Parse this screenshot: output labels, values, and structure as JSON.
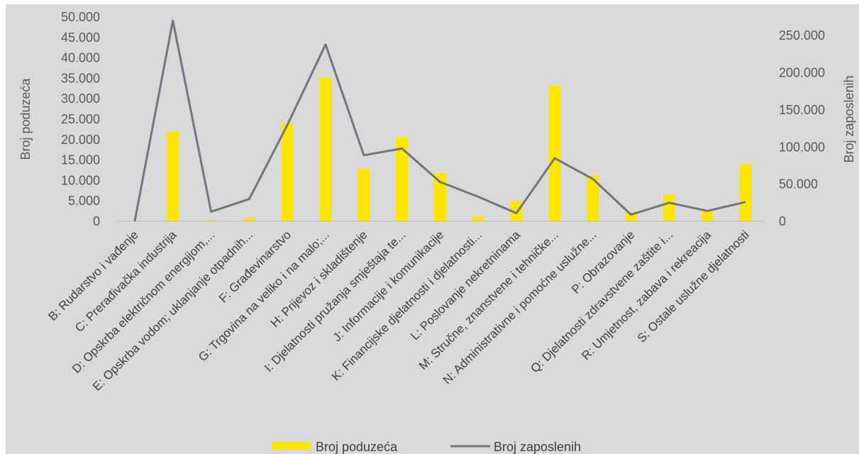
{
  "chart_data": {
    "type": "bar",
    "categories": [
      "B: Rudarstvo i vađenje",
      "C: Prerađivačka industrija",
      "D: Opskrba električnom energijom,...",
      "E: Opskrba vodom; uklanjanje otpadnih...",
      "F: Građevinarstvo",
      "G: Trgovina na veliko i na malo;...",
      "H: Prijevoz i skladištenje",
      "I: Djelatnosti pružanja smještaja te...",
      "J: Informacije i komunikacije",
      "K: Financijske djelatnosti i djelatnosti...",
      "L: Poslovanje nekretninama",
      "M: Stručne, znanstvene i tehničke...",
      "N: Administrativne i pomoćne uslužne...",
      "P: Obrazovanje",
      "Q: Djelatnosti zdravstvene zaštite i...",
      "R: Umjetnost, zabava i rekreacija",
      "S: Ostale uslužne djelatnosti"
    ],
    "series": [
      {
        "name": "Broj poduzeća",
        "type": "bar",
        "axis": "left",
        "color": "#ffe600",
        "values": [
          150,
          22000,
          300,
          800,
          24000,
          35200,
          12800,
          20600,
          11800,
          1200,
          5000,
          33200,
          11200,
          2400,
          6500,
          2600,
          14000
        ]
      },
      {
        "name": "Broj zaposlenih",
        "type": "line",
        "axis": "right",
        "color": "#747480",
        "values": [
          0,
          270000,
          13000,
          30000,
          130000,
          238000,
          89000,
          98000,
          53000,
          33000,
          11000,
          85000,
          57000,
          9000,
          25000,
          14000,
          26000
        ]
      }
    ],
    "y_left": {
      "label": "Broj poduzeća",
      "ylim": [
        0,
        50000
      ],
      "ticks": [
        "0",
        "5.000",
        "10.000",
        "15.000",
        "20.000",
        "25.000",
        "30.000",
        "35.000",
        "40.000",
        "45.000",
        "50.000"
      ]
    },
    "y_right": {
      "label": "Broj zaposlenih",
      "ylim": [
        0,
        275000
      ],
      "ticks": [
        "0",
        "50.000",
        "100.000",
        "150.000",
        "200.000",
        "250.000"
      ]
    },
    "grid": false,
    "legend_position": "bottom-center"
  }
}
